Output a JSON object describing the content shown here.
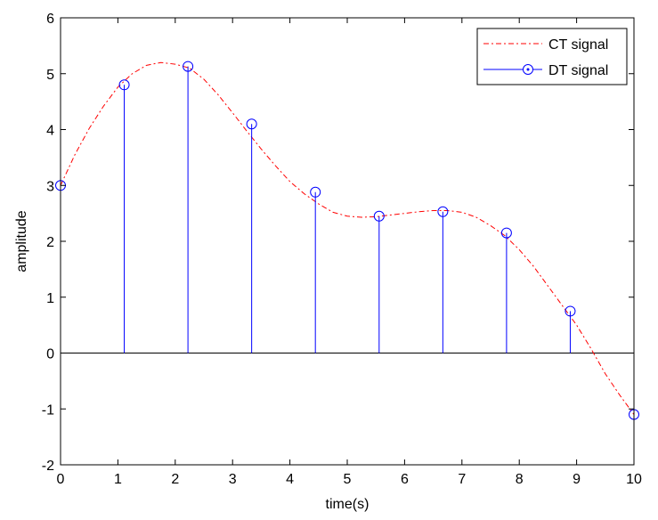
{
  "chart_data": {
    "type": "line",
    "title": "",
    "xlabel": "time(s)",
    "ylabel": "amplitude",
    "xlim": [
      0,
      10
    ],
    "ylim": [
      -2,
      6
    ],
    "xticks": [
      0,
      1,
      2,
      3,
      4,
      5,
      6,
      7,
      8,
      9,
      10
    ],
    "yticks": [
      -2,
      -1,
      0,
      1,
      2,
      3,
      4,
      5,
      6
    ],
    "grid": false,
    "legend_position": "top-right",
    "series": [
      {
        "name": "CT signal",
        "style": "dash-dot",
        "color": "#ff0000",
        "x": [
          0,
          0.25,
          0.5,
          0.75,
          1.0,
          1.25,
          1.5,
          1.75,
          2.0,
          2.25,
          2.5,
          2.75,
          3.0,
          3.25,
          3.5,
          3.75,
          4.0,
          4.25,
          4.5,
          4.75,
          5.0,
          5.25,
          5.5,
          5.75,
          6.0,
          6.25,
          6.5,
          6.75,
          7.0,
          7.25,
          7.5,
          7.75,
          8.0,
          8.25,
          8.5,
          8.75,
          9.0,
          9.25,
          9.5,
          9.75,
          10.0
        ],
        "y": [
          3.0,
          3.55,
          4.02,
          4.42,
          4.76,
          5.0,
          5.15,
          5.2,
          5.17,
          5.1,
          4.9,
          4.62,
          4.3,
          3.97,
          3.65,
          3.35,
          3.07,
          2.85,
          2.67,
          2.52,
          2.45,
          2.43,
          2.44,
          2.47,
          2.5,
          2.53,
          2.55,
          2.55,
          2.52,
          2.43,
          2.28,
          2.1,
          1.85,
          1.55,
          1.2,
          0.85,
          0.5,
          0.08,
          -0.37,
          -0.75,
          -1.1
        ]
      },
      {
        "name": "DT signal",
        "style": "stem",
        "marker": "circle",
        "color": "#0000ff",
        "x": [
          0,
          1.111,
          2.222,
          3.333,
          4.444,
          5.556,
          6.667,
          7.778,
          8.889,
          10.0
        ],
        "y": [
          3.0,
          4.8,
          5.13,
          4.1,
          2.88,
          2.45,
          2.53,
          2.15,
          0.75,
          -1.1
        ]
      }
    ]
  }
}
